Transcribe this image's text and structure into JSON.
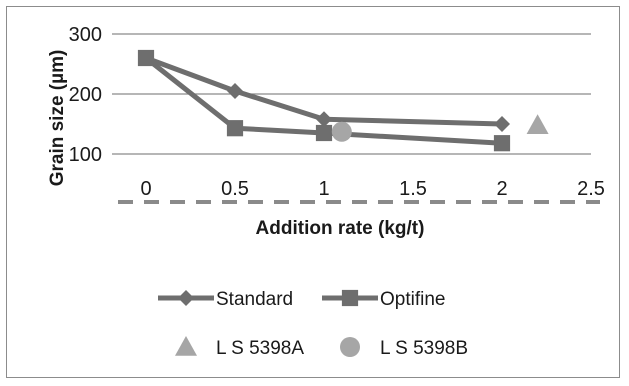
{
  "chart_data": {
    "type": "line",
    "xlabel": "Addition rate (kg/t)",
    "ylabel": "Grain size (µm)",
    "xlim": [
      0,
      2.5
    ],
    "ylim": [
      100,
      300
    ],
    "x_ticks": [
      "0",
      "0.5",
      "1",
      "1.5",
      "2",
      "2.5"
    ],
    "y_ticks": [
      "100",
      "200",
      "300"
    ],
    "grid": "horizontal",
    "legend_position": "bottom",
    "series": [
      {
        "name": "Standard",
        "marker": "diamond",
        "line": true,
        "color": "#6e6e6e",
        "points": [
          {
            "x": 0,
            "y": 260
          },
          {
            "x": 0.5,
            "y": 205
          },
          {
            "x": 1,
            "y": 158
          },
          {
            "x": 2,
            "y": 150
          }
        ]
      },
      {
        "name": "Optifine",
        "marker": "square",
        "line": true,
        "color": "#6e6e6e",
        "points": [
          {
            "x": 0,
            "y": 260
          },
          {
            "x": 0.5,
            "y": 143
          },
          {
            "x": 1,
            "y": 135
          },
          {
            "x": 2,
            "y": 118
          }
        ]
      },
      {
        "name": "L S 5398A",
        "marker": "triangle",
        "line": false,
        "color": "#a6a6a6",
        "points": [
          {
            "x": 2.2,
            "y": 148
          }
        ]
      },
      {
        "name": "L S 5398B",
        "marker": "circle",
        "line": false,
        "color": "#a6a6a6",
        "points": [
          {
            "x": 1.1,
            "y": 137
          }
        ]
      }
    ]
  }
}
